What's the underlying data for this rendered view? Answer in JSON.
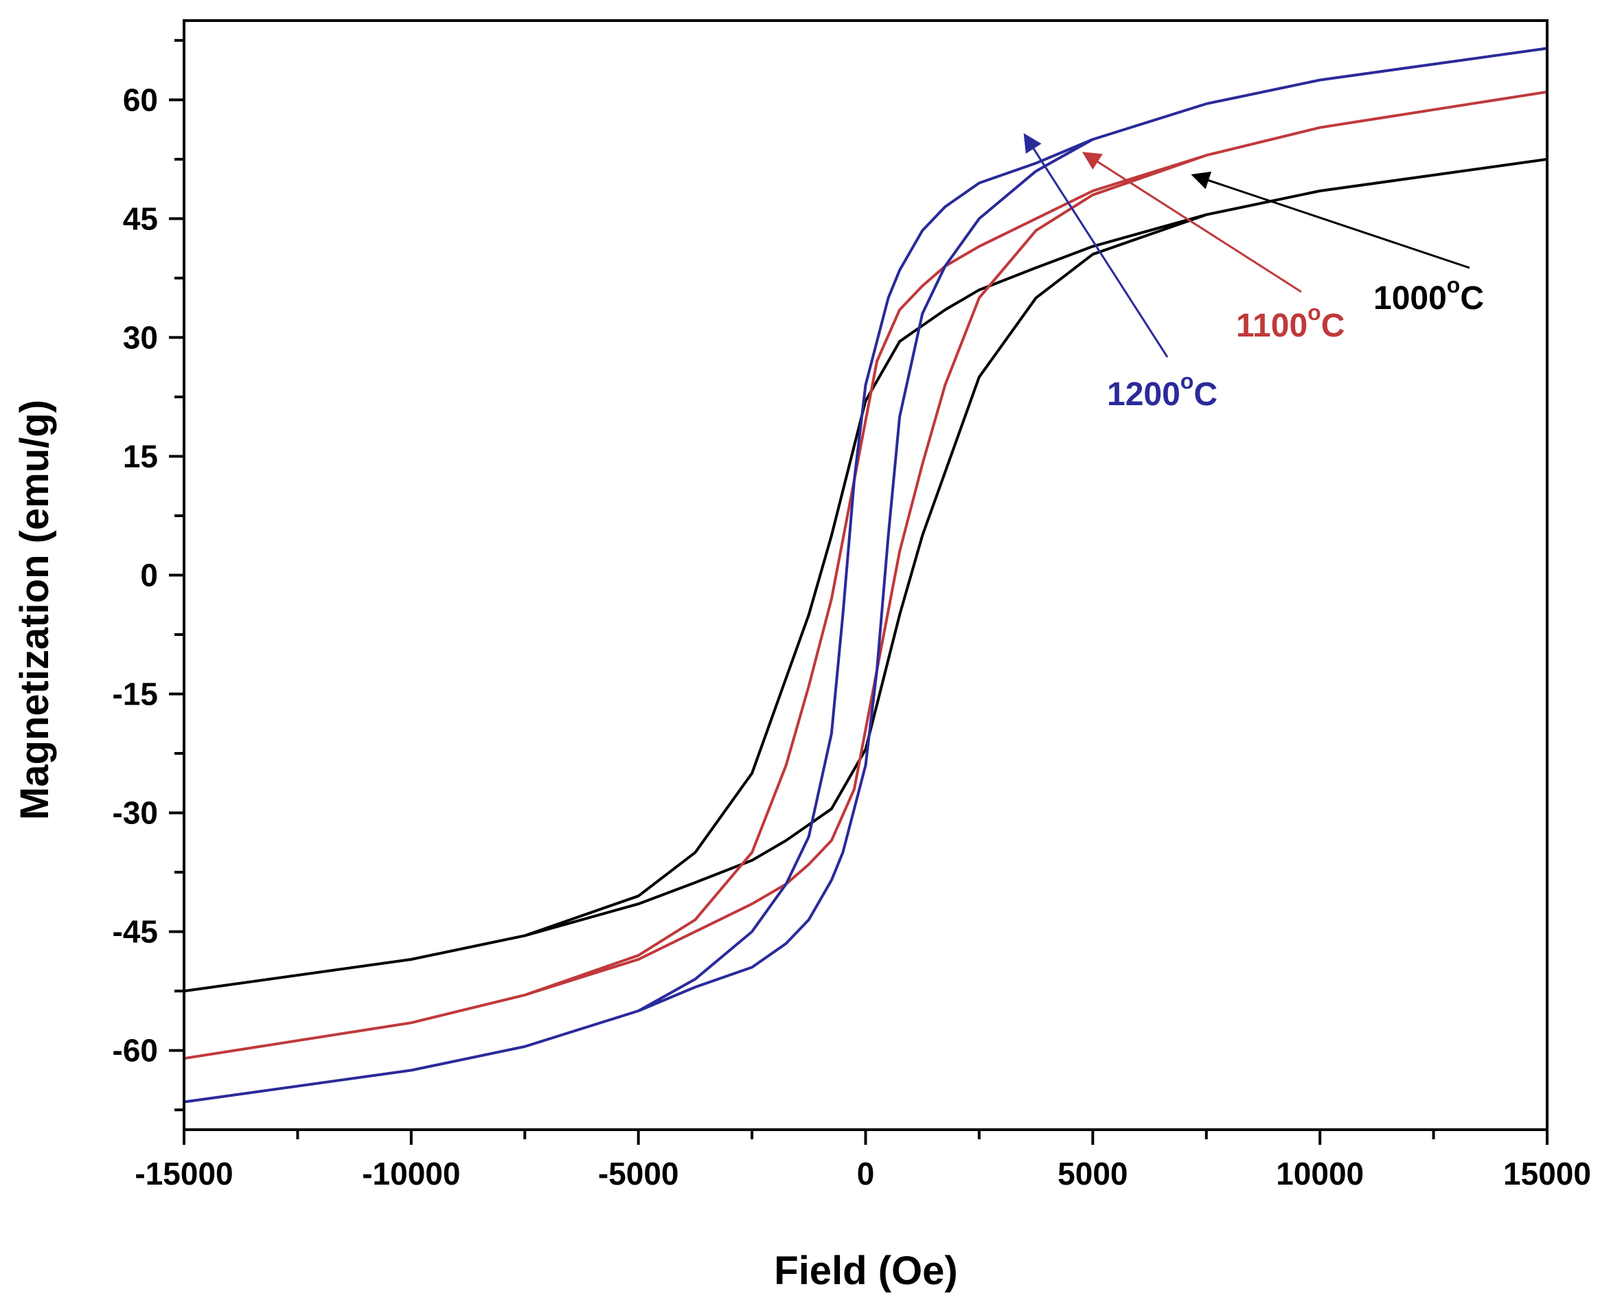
{
  "chart_data": {
    "type": "line",
    "title": "",
    "xlabel": "Field (Oe)",
    "ylabel": "Magnetization (emu/g)",
    "xlim": [
      -15000,
      15000
    ],
    "ylim": [
      -70,
      70
    ],
    "xticks": [
      -15000,
      -10000,
      -5000,
      0,
      5000,
      10000,
      15000
    ],
    "xtick_labels": [
      "-15000",
      "-10000",
      "-5000",
      "0",
      "5000",
      "10000",
      "15000"
    ],
    "yticks": [
      -60,
      -45,
      -30,
      -15,
      0,
      15,
      30,
      45,
      60
    ],
    "ytick_labels": [
      "-60",
      "-45",
      "-30",
      "-15",
      "0",
      "15",
      "30",
      "45",
      "60"
    ],
    "grid": false,
    "series": [
      {
        "name": "1000°C",
        "label_main": "1000",
        "label_sup": "o",
        "label_unit": "C",
        "color": "#000000",
        "x": [
          -15000,
          -10000,
          -7500,
          -5000,
          -3750,
          -2500,
          -1750,
          -1250,
          -750,
          0,
          750,
          1250,
          1750,
          2500,
          3750,
          5000,
          7500,
          10000,
          15000,
          10000,
          7500,
          5000,
          3750,
          2500,
          1750,
          1250,
          750,
          0,
          -750,
          -1250,
          -1750,
          -2500,
          -3750,
          -5000,
          -7500,
          -10000,
          -15000
        ],
        "y": [
          -52.5,
          -48.5,
          -45.5,
          -41.5,
          -38.8,
          -36,
          -33.5,
          -31.5,
          -29.5,
          -22,
          -5,
          5,
          13,
          25,
          35,
          40.5,
          45.5,
          48.5,
          52.5,
          48.5,
          45.5,
          41.5,
          38.8,
          36,
          33.5,
          31.5,
          29.5,
          22,
          5,
          -5,
          -13,
          -25,
          -35,
          -40.5,
          -45.5,
          -48.5,
          -52.5
        ]
      },
      {
        "name": "1100°C",
        "label_main": "1100",
        "label_sup": "o",
        "label_unit": "C",
        "color": "#c0393b",
        "x": [
          -15000,
          -10000,
          -7500,
          -5000,
          -3750,
          -2500,
          -1750,
          -1250,
          -750,
          -250,
          250,
          750,
          1250,
          1750,
          2500,
          3750,
          5000,
          7500,
          10000,
          15000,
          10000,
          7500,
          5000,
          3750,
          2500,
          1750,
          1250,
          750,
          250,
          -250,
          -750,
          -1250,
          -1750,
          -2500,
          -3750,
          -5000,
          -7500,
          -10000,
          -15000
        ],
        "y": [
          -61,
          -56.5,
          -53,
          -48.5,
          -45,
          -41.5,
          -39,
          -36.5,
          -33.5,
          -27,
          -12,
          3,
          14,
          24,
          35,
          43.5,
          48,
          53,
          56.5,
          61,
          56.5,
          53,
          48.5,
          45,
          41.5,
          39,
          36.5,
          33.5,
          27,
          12,
          -3,
          -14,
          -24,
          -35,
          -43.5,
          -48,
          -53,
          -56.5,
          -61
        ]
      },
      {
        "name": "1200°C",
        "label_main": "1200",
        "label_sup": "o",
        "label_unit": "C",
        "color": "#2a2a9a",
        "x": [
          -15000,
          -10000,
          -7500,
          -5000,
          -3750,
          -2500,
          -1750,
          -1250,
          -750,
          -500,
          -250,
          0,
          250,
          500,
          750,
          1250,
          1750,
          2500,
          3750,
          5000,
          7500,
          10000,
          15000,
          10000,
          7500,
          5000,
          3750,
          2500,
          1750,
          1250,
          750,
          500,
          250,
          0,
          -250,
          -500,
          -750,
          -1250,
          -1750,
          -2500,
          -3750,
          -5000,
          -7500,
          -10000,
          -15000
        ],
        "y": [
          -66.5,
          -62.5,
          -59.5,
          -55,
          -52,
          -49.5,
          -46.5,
          -43.5,
          -38.5,
          -35,
          -29.5,
          -24,
          -12,
          5,
          20,
          33,
          39,
          45,
          51,
          55,
          59.5,
          62.5,
          66.5,
          62.5,
          59.5,
          55,
          52,
          49.5,
          46.5,
          43.5,
          38.5,
          35,
          29.5,
          24,
          12,
          -5,
          -20,
          -33,
          -39,
          -45,
          -51,
          -55,
          -59.5,
          -62.5,
          -66.5
        ]
      }
    ],
    "annotations": [
      {
        "series": 0,
        "text": "1000°C",
        "arrow_to": [
          7200,
          50.5
        ]
      },
      {
        "series": 1,
        "text": "1100°C",
        "arrow_to": [
          4800,
          53.3
        ]
      },
      {
        "series": 2,
        "text": "1200°C",
        "arrow_to": [
          3500,
          55.6
        ]
      }
    ]
  }
}
